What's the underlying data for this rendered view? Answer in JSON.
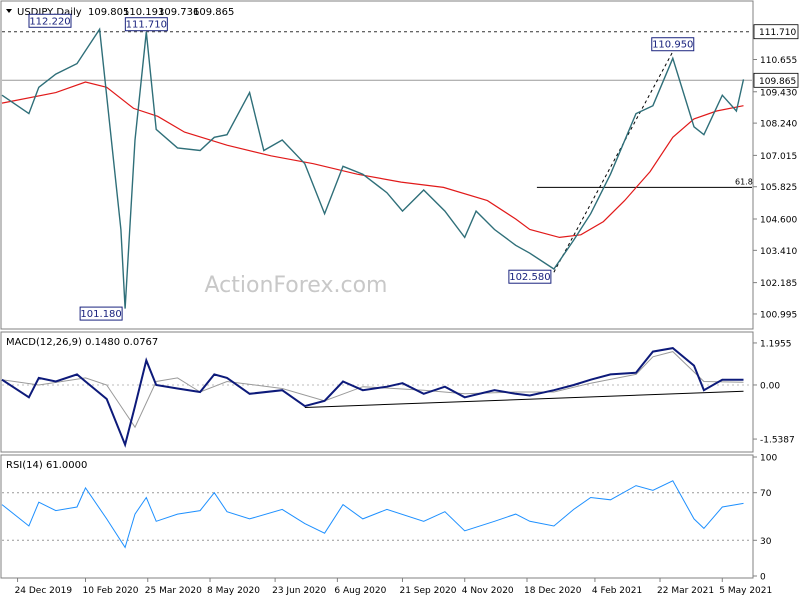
{
  "chart_data": [
    {
      "type": "line",
      "panel": "price",
      "title": "USDJPY,Daily",
      "ohlc_readout": [
        "109.805",
        "110.193",
        "109.736",
        "109.865"
      ],
      "y_ticks": [
        "110.655",
        "109.430",
        "108.240",
        "107.015",
        "105.825",
        "104.600",
        "103.410",
        "102.185",
        "100.995"
      ],
      "ylim": [
        100.5,
        112.8
      ],
      "hlines": [
        {
          "value": 111.71,
          "label": "111.710",
          "style": "dashed",
          "tag_bg": "#ffffff"
        },
        {
          "value": 109.865,
          "label": "109.865",
          "style": "solid",
          "tag_bg": "#ffffff"
        }
      ],
      "retracement": {
        "value": 105.8,
        "label": "61.8"
      },
      "annotations": [
        {
          "text": "112.220",
          "x": "2020-02-04",
          "y": 112.22
        },
        {
          "text": "111.710",
          "x": "2020-03-24",
          "y": 111.71
        },
        {
          "text": "101.180",
          "x": "2020-03-09",
          "y": 101.18
        },
        {
          "text": "102.580",
          "x": "2021-01-06",
          "y": 102.58
        },
        {
          "text": "110.950",
          "x": "2021-03-31",
          "y": 110.95
        }
      ],
      "price_series": {
        "name": "",
        "x": [
          "2019-12-13",
          "2020-01-01",
          "2020-01-08",
          "2020-01-20",
          "2020-02-04",
          "2020-02-20",
          "2020-03-06",
          "2020-03-09",
          "2020-03-16",
          "2020-03-24",
          "2020-03-31",
          "2020-04-15",
          "2020-05-01",
          "2020-05-11",
          "2020-05-20",
          "2020-06-05",
          "2020-06-15",
          "2020-06-28",
          "2020-07-14",
          "2020-07-28",
          "2020-08-10",
          "2020-08-24",
          "2020-09-10",
          "2020-09-21",
          "2020-10-06",
          "2020-10-21",
          "2020-11-04",
          "2020-11-12",
          "2020-11-25",
          "2020-12-10",
          "2020-12-20",
          "2021-01-06",
          "2021-01-20",
          "2021-02-01",
          "2021-02-15",
          "2021-03-05",
          "2021-03-17",
          "2021-03-31",
          "2021-04-15",
          "2021-04-22",
          "2021-05-05",
          "2021-05-15",
          "2021-05-20"
        ],
        "y": [
          109.3,
          108.6,
          109.6,
          110.1,
          110.5,
          111.8,
          104.2,
          101.2,
          107.6,
          111.7,
          108.0,
          107.3,
          107.2,
          107.7,
          107.8,
          109.4,
          107.2,
          107.6,
          106.7,
          104.8,
          106.6,
          106.3,
          105.6,
          104.9,
          105.7,
          104.9,
          103.9,
          104.9,
          104.2,
          103.6,
          103.3,
          102.7,
          103.8,
          104.8,
          106.3,
          108.6,
          108.9,
          110.7,
          108.1,
          107.8,
          109.3,
          108.7,
          109.9
        ]
      },
      "moving_average": {
        "name": "",
        "x": [
          "2019-12-13",
          "2020-01-20",
          "2020-02-10",
          "2020-02-25",
          "2020-03-15",
          "2020-04-01",
          "2020-04-20",
          "2020-05-20",
          "2020-06-20",
          "2020-07-20",
          "2020-08-20",
          "2020-09-20",
          "2020-10-20",
          "2020-11-20",
          "2020-12-10",
          "2020-12-20",
          "2021-01-10",
          "2021-01-25",
          "2021-02-10",
          "2021-02-25",
          "2021-03-15",
          "2021-03-31",
          "2021-04-15",
          "2021-05-01",
          "2021-05-20"
        ],
        "y": [
          109.0,
          109.4,
          109.8,
          109.6,
          108.8,
          108.5,
          107.9,
          107.4,
          107.0,
          106.7,
          106.3,
          106.0,
          105.8,
          105.3,
          104.6,
          104.2,
          103.9,
          104.0,
          104.5,
          105.3,
          106.4,
          107.7,
          108.4,
          108.7,
          108.9
        ]
      }
    },
    {
      "type": "line",
      "panel": "macd",
      "title": "MACD(12,26,9) 0.1480 0.0767",
      "y_ticks": [
        "1.1955",
        "0.00",
        "-1.5387"
      ],
      "ylim": [
        -1.85,
        1.45
      ],
      "trendline": {
        "x": [
          "2020-07-14",
          "2021-05-20"
        ],
        "y": [
          -0.64,
          -0.18
        ]
      },
      "macd": {
        "name": "",
        "x": [
          "2019-12-13",
          "2020-01-01",
          "2020-01-08",
          "2020-01-20",
          "2020-02-04",
          "2020-02-10",
          "2020-02-25",
          "2020-03-09",
          "2020-03-16",
          "2020-03-24",
          "2020-03-31",
          "2020-04-15",
          "2020-05-01",
          "2020-05-11",
          "2020-05-20",
          "2020-06-05",
          "2020-06-28",
          "2020-07-14",
          "2020-07-28",
          "2020-08-10",
          "2020-08-24",
          "2020-09-10",
          "2020-09-21",
          "2020-10-06",
          "2020-10-21",
          "2020-11-04",
          "2020-11-25",
          "2020-12-10",
          "2020-12-20",
          "2021-01-06",
          "2021-01-20",
          "2021-02-01",
          "2021-02-15",
          "2021-03-05",
          "2021-03-17",
          "2021-03-31",
          "2021-04-15",
          "2021-04-22",
          "2021-05-05",
          "2021-05-20"
        ],
        "y": [
          0.15,
          -0.35,
          0.2,
          0.1,
          0.3,
          0.1,
          -0.4,
          -1.7,
          -0.6,
          0.7,
          0.0,
          -0.1,
          -0.2,
          0.3,
          0.2,
          -0.25,
          -0.15,
          -0.6,
          -0.45,
          0.1,
          -0.15,
          -0.05,
          0.05,
          -0.25,
          -0.05,
          -0.35,
          -0.15,
          -0.25,
          -0.3,
          -0.15,
          0.0,
          0.15,
          0.3,
          0.35,
          0.95,
          1.05,
          0.55,
          -0.15,
          0.15,
          0.15
        ]
      },
      "signal": {
        "name": "",
        "x": [
          "2019-12-13",
          "2020-01-08",
          "2020-02-10",
          "2020-02-25",
          "2020-03-16",
          "2020-03-31",
          "2020-04-15",
          "2020-05-01",
          "2020-05-20",
          "2020-06-28",
          "2020-07-28",
          "2020-08-24",
          "2020-10-06",
          "2020-11-04",
          "2020-12-10",
          "2021-01-06",
          "2021-02-01",
          "2021-03-05",
          "2021-03-17",
          "2021-03-31",
          "2021-04-22",
          "2021-05-20"
        ],
        "y": [
          0.15,
          0.0,
          0.2,
          0.0,
          -1.2,
          0.1,
          0.2,
          -0.2,
          0.1,
          -0.1,
          -0.45,
          -0.05,
          -0.15,
          -0.25,
          -0.2,
          -0.2,
          0.05,
          0.3,
          0.8,
          0.95,
          0.1,
          0.08
        ]
      }
    },
    {
      "type": "line",
      "panel": "rsi",
      "title": "RSI(14) 61.0000",
      "y_ticks": [
        "100",
        "70",
        "30",
        "0"
      ],
      "ylim": [
        0,
        100
      ],
      "levels": [
        70,
        30
      ],
      "rsi": {
        "name": "",
        "x": [
          "2019-12-13",
          "2020-01-01",
          "2020-01-08",
          "2020-01-20",
          "2020-02-04",
          "2020-02-10",
          "2020-02-25",
          "2020-03-09",
          "2020-03-16",
          "2020-03-24",
          "2020-03-31",
          "2020-04-15",
          "2020-05-01",
          "2020-05-11",
          "2020-05-20",
          "2020-06-05",
          "2020-06-28",
          "2020-07-14",
          "2020-07-28",
          "2020-08-10",
          "2020-08-24",
          "2020-09-10",
          "2020-10-06",
          "2020-10-21",
          "2020-11-04",
          "2020-11-25",
          "2020-12-10",
          "2020-12-20",
          "2021-01-06",
          "2021-01-20",
          "2021-02-01",
          "2021-02-15",
          "2021-03-05",
          "2021-03-17",
          "2021-03-31",
          "2021-04-15",
          "2021-04-22",
          "2021-05-05",
          "2021-05-20"
        ],
        "y": [
          60,
          42,
          62,
          55,
          58,
          74,
          48,
          24,
          52,
          66,
          46,
          52,
          55,
          70,
          54,
          48,
          56,
          44,
          36,
          60,
          48,
          56,
          46,
          54,
          38,
          46,
          52,
          46,
          42,
          56,
          66,
          64,
          76,
          72,
          80,
          48,
          40,
          58,
          61
        ]
      }
    }
  ],
  "x_axis": {
    "labels": [
      "24 Dec 2019",
      "10 Feb 2020",
      "25 Mar 2020",
      "8 May 2020",
      "23 Jun 2020",
      "6 Aug 2020",
      "21 Sep 2020",
      "4 Nov 2020",
      "18 Dec 2020",
      "4 Feb 2021",
      "22 Mar 2021",
      "5 May 2021"
    ],
    "range": [
      "2019-12-13",
      "2021-05-26"
    ]
  },
  "watermark": "ActionForex.com",
  "colors": {
    "price": "#2f6f79",
    "ma": "#e11a1a",
    "macd": "#0d1a7a",
    "signal": "#9a9a9a",
    "rsi": "#1e90ff",
    "annotation_box": "#1a237e",
    "grid_dashed": "#777777"
  }
}
